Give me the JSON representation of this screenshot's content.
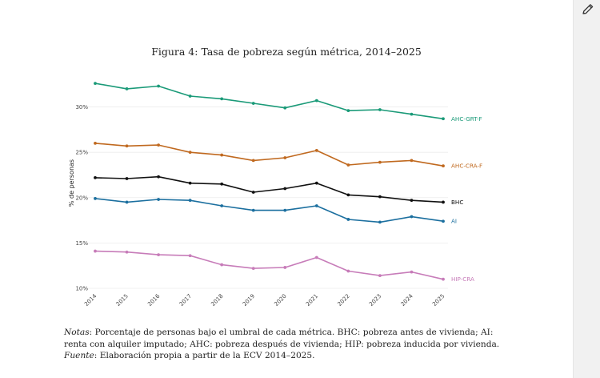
{
  "toolbar": {
    "edit_icon": "pencil-icon"
  },
  "figure_title": "Figura 4: Tasa de pobreza según métrica, 2014–2025",
  "notes": {
    "notas_label": "Notas",
    "notas_text": ": Porcentaje de personas bajo el umbral de cada métrica. BHC: pobreza antes de vivienda; AI: renta con alquiler imputado; AHC: pobreza después de vivienda; HIP: pobreza inducida por vivienda.",
    "fuente_label": "Fuente",
    "fuente_text": ": Elaboración propia a partir de la ECV 2014–2025."
  },
  "chart_data": {
    "type": "line",
    "title": "",
    "xlabel": "",
    "ylabel": "% de personas",
    "x": [
      "2014",
      "2015",
      "2016",
      "2017",
      "2018",
      "2019",
      "2020",
      "2021",
      "2022",
      "2023",
      "2024",
      "2025"
    ],
    "yticks": [
      10,
      15,
      20,
      25,
      30
    ],
    "ytick_labels": [
      "10%",
      "15%",
      "20%",
      "25%",
      "30%"
    ],
    "ylim": [
      10,
      32.7
    ],
    "grid": true,
    "legend": "direct-labels-right",
    "series": [
      {
        "name": "AHC-GRT-F",
        "color": "#1a9a78",
        "values": [
          32.6,
          32.0,
          32.3,
          31.2,
          30.9,
          30.4,
          29.9,
          30.7,
          29.6,
          29.7,
          29.2,
          28.7
        ]
      },
      {
        "name": "AHC-CRA-F",
        "color": "#c0691f",
        "values": [
          26.0,
          25.7,
          25.8,
          25.0,
          24.7,
          24.1,
          24.4,
          25.2,
          23.6,
          23.9,
          24.1,
          23.5
        ]
      },
      {
        "name": "BHC",
        "color": "#111111",
        "values": [
          22.2,
          22.1,
          22.3,
          21.6,
          21.5,
          20.6,
          21.0,
          21.6,
          20.3,
          20.1,
          19.7,
          19.5
        ]
      },
      {
        "name": "AI",
        "color": "#1b6f9f",
        "values": [
          19.9,
          19.5,
          19.8,
          19.7,
          19.1,
          18.6,
          18.6,
          19.1,
          17.6,
          17.3,
          17.9,
          17.4
        ]
      },
      {
        "name": "HIP-CRA",
        "color": "#c77cb9",
        "values": [
          14.1,
          14.0,
          13.7,
          13.6,
          12.6,
          12.2,
          12.3,
          13.4,
          11.9,
          11.4,
          11.8,
          11.0
        ]
      }
    ]
  }
}
